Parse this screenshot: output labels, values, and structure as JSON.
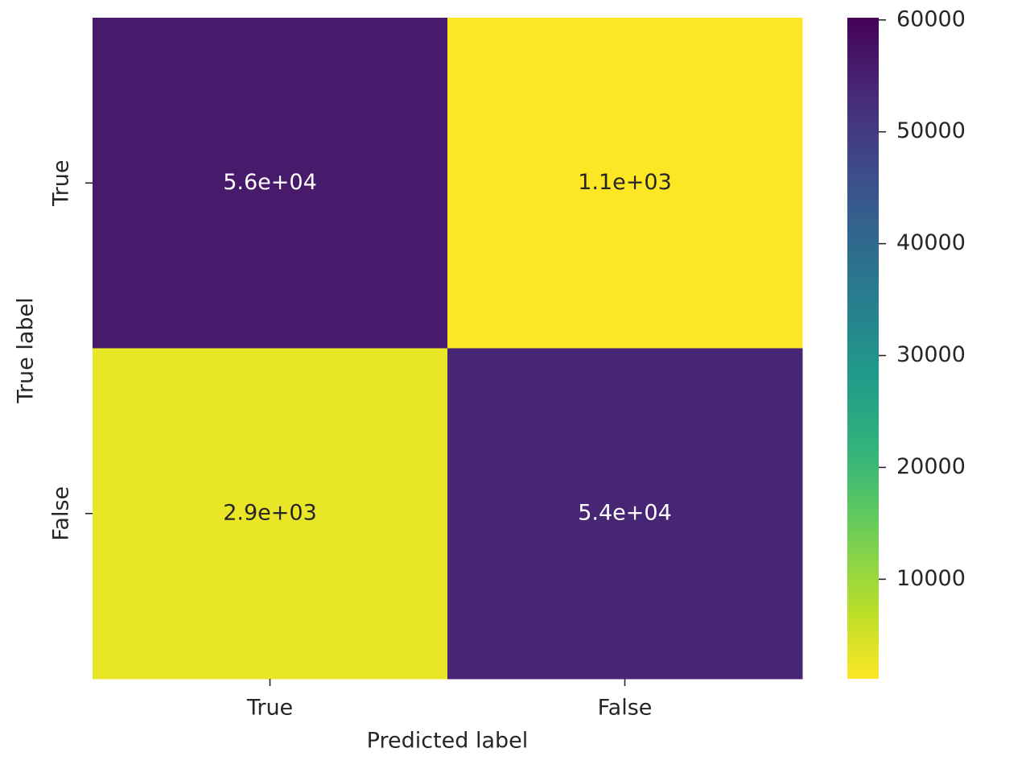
{
  "chart_data": {
    "type": "heatmap",
    "x_categories": [
      "True",
      "False"
    ],
    "y_categories": [
      "True",
      "False"
    ],
    "xlabel": "Predicted label",
    "ylabel": "True label",
    "values": [
      [
        56000,
        1100
      ],
      [
        2900,
        54000
      ]
    ],
    "value_labels": [
      [
        "5.6e+04",
        "1.1e+03"
      ],
      [
        "2.9e+03",
        "5.4e+04"
      ]
    ],
    "colormap": "viridis_r",
    "clim": [
      1100,
      60200
    ],
    "cticks": [
      10000,
      20000,
      30000,
      40000,
      50000,
      60000
    ]
  }
}
